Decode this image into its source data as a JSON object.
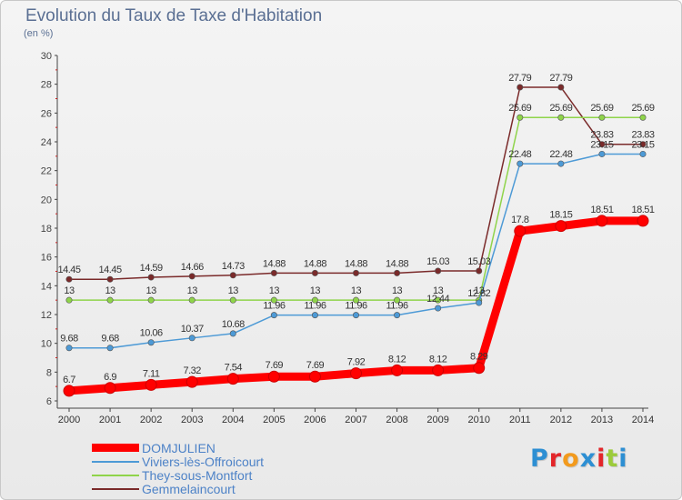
{
  "header": {
    "title": "Evolution du Taux de Taxe d'Habitation",
    "subtitle": "(en %)"
  },
  "brand": {
    "letters": [
      "P",
      "r",
      "o",
      "x",
      "i",
      "t",
      "i"
    ],
    "colors": [
      "#2d8fd3",
      "#e3262a",
      "#f29a1d",
      "#2d8fd3",
      "#e3262a",
      "#9ccb3b",
      "#2d8fd3"
    ]
  },
  "chart_data": {
    "type": "line",
    "x": [
      "2000",
      "2001",
      "2002",
      "2003",
      "2004",
      "2005",
      "2006",
      "2007",
      "2008",
      "2009",
      "2010",
      "2011",
      "2012",
      "2013",
      "2014"
    ],
    "ylim": [
      6,
      30
    ],
    "yticks": [
      "6",
      "8",
      "10",
      "12",
      "14",
      "16",
      "18",
      "20",
      "22",
      "24",
      "26",
      "28",
      "30"
    ],
    "grid": false,
    "legend_position": "bottom-left",
    "series": [
      {
        "name": "DOMJULIEN",
        "color": "#ff0000",
        "values": [
          6.7,
          6.9,
          7.11,
          7.32,
          7.54,
          7.69,
          7.69,
          7.92,
          8.12,
          8.12,
          8.29,
          17.8,
          18.15,
          18.51,
          18.51
        ],
        "labels": [
          "6.7",
          "6.9",
          "7.11",
          "7.32",
          "7.54",
          "7.69",
          "7.69",
          "7.92",
          "8.12",
          "8.12",
          "8.29",
          "17.8",
          "18.15",
          "18.51",
          "18.51"
        ]
      },
      {
        "name": "Viviers-lès-Offroicourt",
        "color": "#4d9ad6",
        "values": [
          9.68,
          9.68,
          10.06,
          10.37,
          10.68,
          11.96,
          11.96,
          11.96,
          11.96,
          12.44,
          12.82,
          22.48,
          22.48,
          23.15,
          23.15
        ],
        "labels": [
          "9.68",
          "9.68",
          "10.06",
          "10.37",
          "10.68",
          "11.96",
          "11.96",
          "11.96",
          "11.96",
          "12.44",
          "12.82",
          "22.48",
          "22.48",
          "23.15",
          "23.15"
        ]
      },
      {
        "name": "They-sous-Montfort",
        "color": "#8fd44a",
        "values": [
          13,
          13,
          13,
          13,
          13,
          13,
          13,
          13,
          13,
          13,
          13,
          25.69,
          25.69,
          25.69,
          25.69
        ],
        "labels": [
          "13",
          "13",
          "13",
          "13",
          "13",
          "13",
          "13",
          "13",
          "13",
          "13",
          "13",
          "25.69",
          "25.69",
          "25.69",
          "25.69"
        ]
      },
      {
        "name": "Gemmelaincourt",
        "color": "#7a2a2a",
        "values": [
          14.45,
          14.45,
          14.59,
          14.66,
          14.73,
          14.88,
          14.88,
          14.88,
          14.88,
          15.03,
          15.03,
          27.79,
          27.79,
          23.83,
          23.83
        ],
        "labels": [
          "14.45",
          "14.45",
          "14.59",
          "14.66",
          "14.73",
          "14.88",
          "14.88",
          "14.88",
          "14.88",
          "15.03",
          "15.03",
          "27.79",
          "27.79",
          "23.83",
          "23.83"
        ]
      }
    ]
  }
}
